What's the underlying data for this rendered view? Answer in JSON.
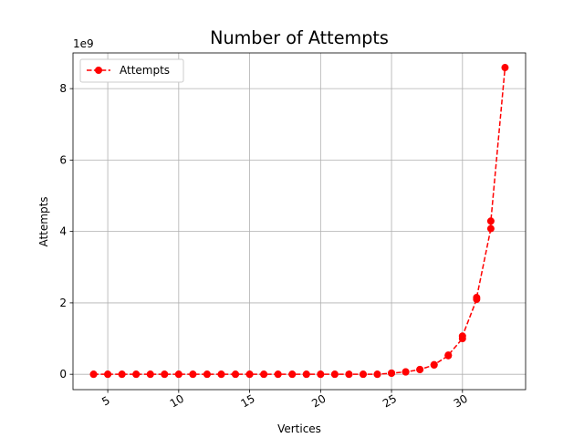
{
  "chart_data": {
    "type": "line",
    "title": "Number of Attempts",
    "xlabel": "Vertices",
    "ylabel": "Attempts",
    "y_offset_label": "1e9",
    "xlim": [
      2.55,
      34.45
    ],
    "ylim": [
      -0.43,
      9.0
    ],
    "x_ticks": [
      5,
      10,
      15,
      20,
      25,
      30
    ],
    "y_ticks": [
      0,
      2,
      4,
      6,
      8
    ],
    "x_tick_rotation": -30,
    "grid": true,
    "legend_position": "top-left",
    "series": [
      {
        "name": "Attempts",
        "color": "#ff0000",
        "line_style": "dashed",
        "marker": "circle",
        "x": [
          4,
          4,
          5,
          5,
          6,
          6,
          7,
          7,
          8,
          8,
          9,
          9,
          10,
          10,
          11,
          11,
          12,
          12,
          13,
          13,
          14,
          14,
          15,
          15,
          16,
          16,
          17,
          17,
          18,
          18,
          19,
          19,
          20,
          20,
          21,
          21,
          22,
          22,
          23,
          23,
          24,
          24,
          25,
          25,
          26,
          26,
          27,
          27,
          28,
          28,
          29,
          29,
          30,
          30,
          31,
          31,
          32,
          32,
          33
        ],
        "y": [
          0,
          0,
          0,
          0,
          0,
          0,
          0,
          0,
          0,
          0,
          0,
          0,
          0,
          0,
          0,
          0,
          0,
          0,
          0,
          0,
          0,
          0,
          0,
          0,
          0,
          0,
          0,
          0,
          0,
          0,
          0,
          0,
          0,
          0,
          0,
          0,
          0,
          0,
          0,
          0,
          0,
          0,
          0.03,
          0.033,
          0.065,
          0.067,
          0.13,
          0.134,
          0.26,
          0.268,
          0.52,
          0.537,
          1.0,
          1.07,
          2.1,
          2.15,
          4.08,
          4.29,
          8.59
        ]
      }
    ]
  }
}
